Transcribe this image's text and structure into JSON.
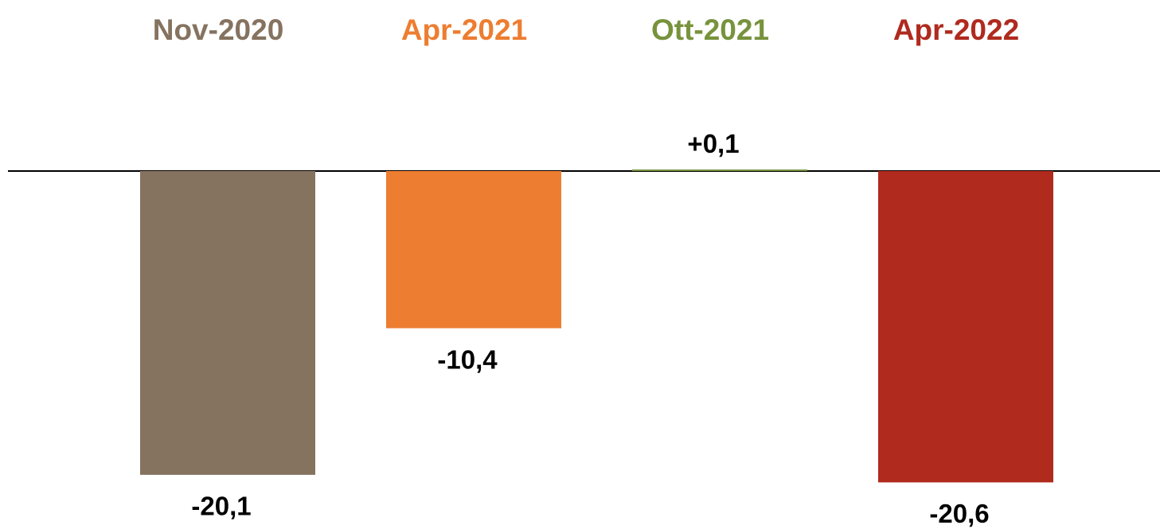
{
  "chart_data": {
    "type": "bar",
    "categories": [
      "Nov-2020",
      "Apr-2021",
      "Ott-2021",
      "Apr-2022"
    ],
    "values": [
      -20.1,
      -10.4,
      0.1,
      -20.6
    ],
    "value_labels": [
      "-20,1",
      "-10,4",
      "+0,1",
      "-20,6"
    ],
    "colors": [
      "#857360",
      "#ed7d31",
      "#77933c",
      "#b02a1e"
    ]
  }
}
